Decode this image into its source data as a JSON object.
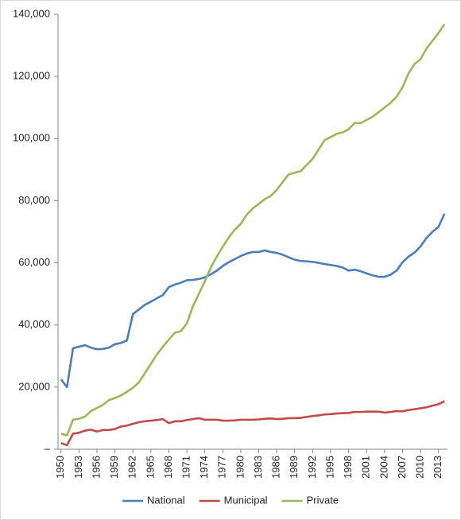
{
  "chart_data": {
    "type": "line",
    "x": [
      1950,
      1951,
      1952,
      1953,
      1954,
      1955,
      1956,
      1957,
      1958,
      1959,
      1960,
      1961,
      1962,
      1963,
      1964,
      1965,
      1966,
      1967,
      1968,
      1969,
      1970,
      1971,
      1972,
      1973,
      1974,
      1975,
      1976,
      1977,
      1978,
      1979,
      1980,
      1981,
      1982,
      1983,
      1984,
      1985,
      1986,
      1987,
      1988,
      1989,
      1990,
      1991,
      1992,
      1993,
      1994,
      1995,
      1996,
      1997,
      1998,
      1999,
      2000,
      2001,
      2002,
      2003,
      2004,
      2005,
      2006,
      2007,
      2008,
      2009,
      2010,
      2011,
      2012,
      2013,
      2014
    ],
    "xlim": [
      1949.5,
      2014.5
    ],
    "xticks": [
      1950,
      1953,
      1956,
      1959,
      1962,
      1965,
      1968,
      1971,
      1974,
      1977,
      1980,
      1983,
      1986,
      1989,
      1992,
      1995,
      1998,
      2001,
      2004,
      2007,
      2010,
      2013
    ],
    "ylim": [
      0,
      140000
    ],
    "yticks": [
      {
        "value": 0,
        "label": "–"
      },
      {
        "value": 20000,
        "label": "20,000"
      },
      {
        "value": 40000,
        "label": "40,000"
      },
      {
        "value": 60000,
        "label": "60,000"
      },
      {
        "value": 80000,
        "label": "80,000"
      },
      {
        "value": 100000,
        "label": "100,000"
      },
      {
        "value": 120000,
        "label": "120,000"
      },
      {
        "value": 140000,
        "label": "140,000"
      }
    ],
    "grid": false,
    "legend": "bottom",
    "series": [
      {
        "name": "National",
        "color": "#4a7ebb",
        "values": [
          22500,
          20000,
          32500,
          33000,
          33500,
          32700,
          32200,
          32300,
          32700,
          33800,
          34200,
          35000,
          43500,
          45000,
          46500,
          47500,
          48600,
          49600,
          52200,
          53000,
          53600,
          54400,
          54500,
          54800,
          55300,
          56300,
          57500,
          59000,
          60200,
          61200,
          62200,
          63000,
          63500,
          63500,
          64000,
          63500,
          63200,
          62600,
          61800,
          61000,
          60600,
          60500,
          60300,
          60000,
          59600,
          59300,
          59000,
          58500,
          57500,
          57800,
          57300,
          56600,
          56000,
          55500,
          55500,
          56200,
          57500,
          60200,
          62000,
          63300,
          65300,
          68000,
          70000,
          71600,
          75800
        ]
      },
      {
        "name": "Municipal",
        "color": "#be4b48",
        "values": [
          2000,
          1300,
          5000,
          5300,
          6000,
          6300,
          5700,
          6200,
          6200,
          6500,
          7300,
          7600,
          8200,
          8700,
          9000,
          9200,
          9400,
          9700,
          8400,
          9000,
          9000,
          9400,
          9700,
          10000,
          9500,
          9500,
          9500,
          9200,
          9200,
          9300,
          9500,
          9500,
          9500,
          9600,
          9800,
          9900,
          9700,
          9800,
          10000,
          10000,
          10100,
          10400,
          10700,
          10900,
          11200,
          11300,
          11500,
          11600,
          11700,
          12000,
          12000,
          12100,
          12100,
          12100,
          11800,
          12000,
          12300,
          12200,
          12600,
          12900,
          13200,
          13500,
          14000,
          14500,
          15500
        ]
      },
      {
        "name": "Private",
        "color": "#98b954",
        "values": [
          5000,
          4500,
          9500,
          9800,
          10500,
          12300,
          13300,
          14300,
          15800,
          16500,
          17300,
          18500,
          19800,
          21500,
          24500,
          27500,
          30500,
          33000,
          35300,
          37500,
          38000,
          40500,
          46000,
          50000,
          54000,
          58500,
          62000,
          65200,
          68200,
          70700,
          72500,
          75500,
          77500,
          79000,
          80500,
          81500,
          83500,
          86000,
          88500,
          89000,
          89500,
          91500,
          93500,
          96500,
          99500,
          100500,
          101500,
          102000,
          103000,
          105000,
          105000,
          106000,
          107000,
          108500,
          110000,
          111500,
          113500,
          116500,
          121000,
          124000,
          125500,
          129000,
          131500,
          134000,
          136800
        ]
      }
    ]
  }
}
